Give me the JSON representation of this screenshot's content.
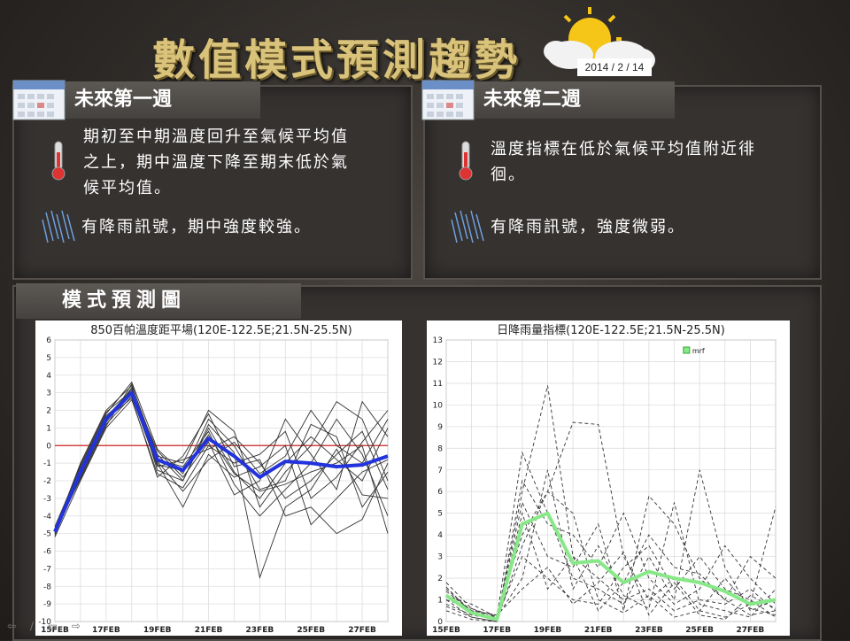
{
  "header": {
    "title": "數值模式預測趨勢",
    "date": "2014 / 2 / 14"
  },
  "week1": {
    "label": "未來第一週",
    "temp_text_lines": [
      "期初至中期溫度回升至氣候平均值",
      "之上，期中溫度下降至期末低於氣",
      "候平均值。"
    ],
    "rain_text": "有降雨訊號，期中強度較強。"
  },
  "week2": {
    "label": "未來第二週",
    "temp_text_lines": [
      "溫度指標在低於氣候平均值附近徘",
      "徊。"
    ],
    "rain_text": "有降雨訊號，強度微弱。"
  },
  "models": {
    "label": "模式預測圖"
  },
  "colors": {
    "title": "#d9c27a",
    "ensemble_mean_temp": "#2233dd",
    "ensemble_mean_rain": "#88e888",
    "zero_line": "#cc2222",
    "member_lines": "#333333"
  },
  "chart_data": [
    {
      "type": "line",
      "title": "850百帕溫度距平場(120E-122.5E;21.5N-25.5N)",
      "x": [
        "15FEB",
        "16FEB",
        "17FEB",
        "18FEB",
        "19FEB",
        "20FEB",
        "21FEB",
        "22FEB",
        "23FEB",
        "24FEB",
        "25FEB",
        "26FEB",
        "27FEB",
        "28FEB"
      ],
      "xticks": [
        "15FEB",
        "17FEB",
        "19FEB",
        "21FEB",
        "23FEB",
        "25FEB",
        "27FEB"
      ],
      "ylim": [
        -10,
        6
      ],
      "yticks": [
        6,
        5,
        4,
        3,
        2,
        1,
        0,
        -1,
        -2,
        -3,
        -4,
        -5,
        -6,
        -7,
        -8,
        -9,
        -10
      ],
      "reference_line": 0,
      "series": [
        {
          "values": [
            -4.9,
            -1.5,
            1.5,
            3.0,
            -0.8,
            -1.4,
            0.4,
            -0.6,
            -1.8,
            -0.9,
            -1.0,
            -1.2,
            -1.1,
            -0.6
          ]
        }
      ],
      "members": [
        [
          -4.8,
          -1.0,
          2.0,
          3.4,
          -0.5,
          -2.0,
          1.0,
          -1.5,
          -3.0,
          -1.0,
          0.5,
          -0.8,
          -2.0,
          1.0
        ],
        [
          -5.0,
          -1.8,
          1.2,
          2.8,
          -1.2,
          -0.8,
          -0.2,
          0.5,
          -1.0,
          -3.0,
          -2.0,
          -0.5,
          0.8,
          -2.5
        ],
        [
          -4.6,
          -1.2,
          1.8,
          3.6,
          -0.2,
          -1.6,
          1.5,
          0.0,
          -2.5,
          -2.0,
          1.2,
          0.5,
          -3.5,
          -1.5
        ],
        [
          -5.2,
          -2.0,
          1.0,
          2.6,
          -1.6,
          -2.4,
          0.0,
          -1.0,
          -0.5,
          0.8,
          -3.0,
          -1.8,
          0.2,
          2.0
        ],
        [
          -4.9,
          -1.4,
          1.6,
          3.2,
          -0.8,
          -1.2,
          0.8,
          -2.2,
          -4.0,
          -2.5,
          -1.0,
          1.5,
          -0.5,
          -4.0
        ],
        [
          -4.7,
          -1.6,
          1.4,
          3.0,
          -1.0,
          -3.5,
          -0.5,
          -1.8,
          -1.2,
          0.0,
          -4.5,
          -3.0,
          -1.5,
          -0.8
        ],
        [
          -5.1,
          -1.3,
          1.7,
          2.9,
          -0.6,
          -1.0,
          2.0,
          0.8,
          -3.5,
          -1.5,
          0.0,
          2.5,
          1.5,
          -2.0
        ],
        [
          -4.8,
          -1.7,
          1.3,
          3.3,
          -1.4,
          -2.0,
          1.2,
          -0.4,
          -7.5,
          -3.5,
          -2.5,
          -0.2,
          -2.8,
          -3.0
        ],
        [
          -5.0,
          -1.1,
          1.9,
          3.1,
          -0.3,
          -1.8,
          0.2,
          -2.8,
          -2.0,
          1.5,
          -0.5,
          -2.5,
          2.5,
          0.5
        ],
        [
          -4.9,
          -1.5,
          1.5,
          2.7,
          -1.8,
          -0.6,
          1.8,
          -1.2,
          -0.8,
          -4.0,
          -3.5,
          -5.0,
          -4.2,
          -1.0
        ],
        [
          -4.8,
          -1.9,
          1.1,
          3.5,
          -0.9,
          -2.6,
          -0.8,
          0.2,
          -1.6,
          -0.6,
          2.0,
          0.0,
          -1.0,
          1.5
        ],
        [
          -5.0,
          -1.4,
          1.6,
          3.0,
          -1.1,
          -1.4,
          0.6,
          -1.6,
          -2.6,
          -2.2,
          -1.5,
          -1.0,
          0.0,
          -5.0
        ]
      ]
    },
    {
      "type": "line",
      "title": "日降雨量指標(120E-122.5E;21.5N-25.5N)",
      "legend": "mrf",
      "legend_position": "top-right",
      "x": [
        "15FEB",
        "16FEB",
        "17FEB",
        "18FEB",
        "19FEB",
        "20FEB",
        "21FEB",
        "22FEB",
        "23FEB",
        "24FEB",
        "25FEB",
        "26FEB",
        "27FEB",
        "28FEB"
      ],
      "xticks": [
        "15FEB",
        "17FEB",
        "19FEB",
        "21FEB",
        "23FEB",
        "25FEB",
        "27FEB"
      ],
      "ylim": [
        0,
        13
      ],
      "yticks": [
        13,
        12,
        11,
        10,
        9,
        8,
        7,
        6,
        5,
        4,
        3,
        2,
        1,
        0
      ],
      "series": [
        {
          "name": "mrf",
          "values": [
            1.2,
            0.4,
            0.1,
            4.5,
            5.0,
            2.7,
            2.8,
            1.8,
            2.3,
            2.0,
            1.8,
            1.4,
            0.8,
            1.0
          ]
        }
      ],
      "members": [
        [
          1.8,
          0.6,
          0.2,
          7.8,
          5.0,
          2.0,
          1.5,
          0.8,
          3.0,
          1.0,
          7.0,
          2.5,
          0.5,
          1.0
        ],
        [
          1.0,
          0.2,
          0.0,
          6.0,
          10.9,
          3.0,
          2.0,
          1.0,
          1.5,
          0.5,
          1.0,
          0.8,
          1.5,
          0.5
        ],
        [
          1.5,
          0.5,
          0.3,
          4.0,
          6.0,
          9.2,
          9.1,
          3.0,
          1.0,
          2.0,
          0.5,
          0.2,
          0.8,
          5.3
        ],
        [
          0.8,
          0.3,
          0.1,
          5.5,
          3.0,
          2.5,
          4.5,
          0.5,
          5.8,
          4.5,
          2.0,
          1.0,
          0.3,
          0.5
        ],
        [
          1.2,
          0.8,
          0.2,
          3.0,
          2.0,
          1.0,
          0.8,
          2.5,
          3.5,
          1.5,
          3.0,
          1.5,
          1.0,
          0.2
        ],
        [
          0.5,
          0.1,
          0.0,
          6.5,
          4.5,
          4.0,
          2.5,
          5.0,
          2.0,
          0.8,
          1.5,
          3.5,
          2.0,
          0.8
        ],
        [
          1.6,
          0.4,
          0.2,
          2.0,
          7.0,
          1.5,
          3.5,
          1.2,
          0.6,
          5.5,
          0.8,
          0.5,
          0.2,
          1.5
        ],
        [
          1.0,
          0.6,
          0.1,
          5.0,
          1.5,
          3.0,
          0.5,
          1.8,
          4.0,
          2.5,
          2.2,
          1.0,
          3.0,
          2.0
        ],
        [
          0.7,
          0.2,
          0.0,
          3.5,
          6.0,
          5.0,
          1.0,
          0.4,
          1.2,
          0.2,
          0.5,
          2.0,
          0.6,
          0.3
        ],
        [
          1.4,
          0.5,
          0.3,
          1.5,
          2.5,
          0.8,
          1.8,
          3.2,
          0.3,
          1.8,
          0.3,
          0.1,
          1.2,
          0.6
        ]
      ]
    }
  ]
}
